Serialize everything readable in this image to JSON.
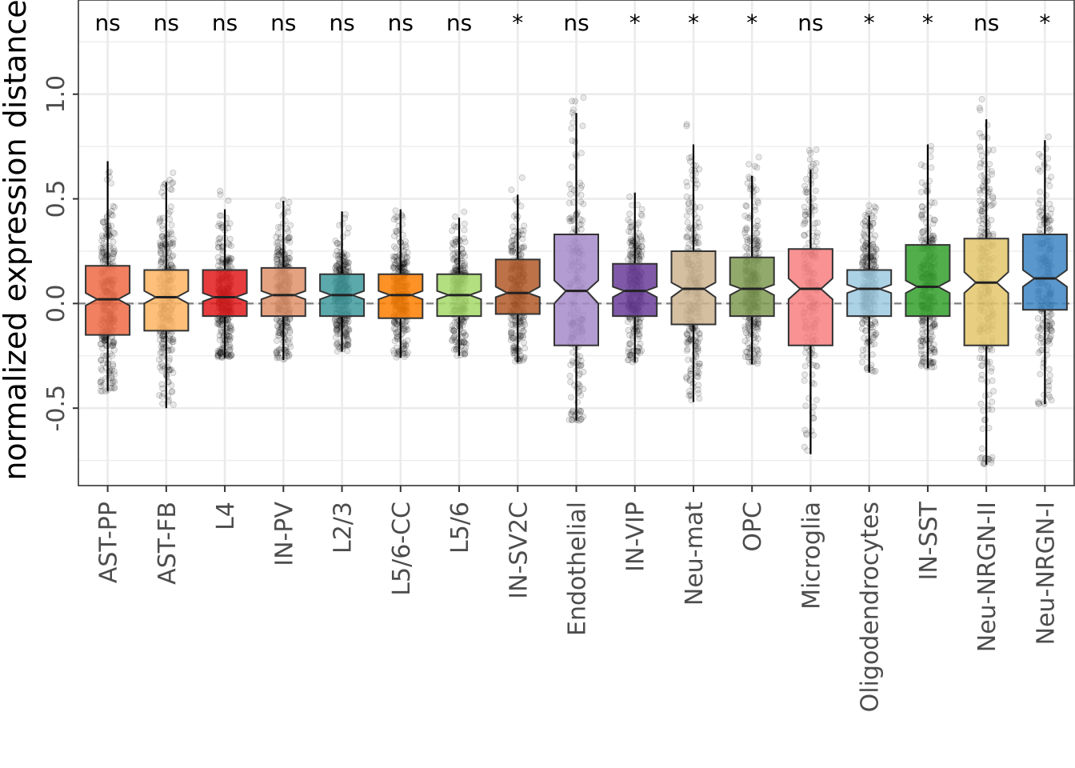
{
  "chart_data": {
    "type": "boxplot",
    "title": "",
    "xlabel": "",
    "ylabel": "normalized expression distance",
    "ylim": [
      -0.87,
      1.45
    ],
    "yticks": [
      -0.5,
      0.0,
      0.5,
      1.0
    ],
    "ytick_labels": [
      "-0.5",
      "0.0",
      "0.5",
      "1.0"
    ],
    "reference_line": 0.0,
    "notched": true,
    "jitter_points": true,
    "categories": [
      "AST-PP",
      "AST-FB",
      "L4",
      "IN-PV",
      "L2/3",
      "L5/6-CC",
      "L5/6",
      "IN-SV2C",
      "Endothelial",
      "IN-VIP",
      "Neu-mat",
      "OPC",
      "Microglia",
      "Oligodendrocytes",
      "IN-SST",
      "Neu-NRGN-II",
      "Neu-NRGN-I"
    ],
    "significance": [
      "ns",
      "ns",
      "ns",
      "ns",
      "ns",
      "ns",
      "ns",
      "*",
      "ns",
      "*",
      "*",
      "*",
      "ns",
      "*",
      "*",
      "ns",
      "*"
    ],
    "colors": [
      "#EF6A45",
      "#FDB462",
      "#E31A1C",
      "#E0926A",
      "#3F9A9E",
      "#FF7F00",
      "#A6D96A",
      "#B15928",
      "#A58BC9",
      "#6A3D9A",
      "#CDB48F",
      "#7F9A52",
      "#F88080",
      "#9ECAE1",
      "#33A02C",
      "#E3C56A",
      "#3C85C3"
    ],
    "series": [
      {
        "name": "AST-PP",
        "q1": -0.15,
        "median": 0.02,
        "q3": 0.18,
        "whisker_low": -0.42,
        "whisker_high": 0.68,
        "notch_low": -0.01,
        "notch_high": 0.05,
        "n": 300
      },
      {
        "name": "AST-FB",
        "q1": -0.13,
        "median": 0.03,
        "q3": 0.16,
        "whisker_low": -0.5,
        "whisker_high": 0.58,
        "notch_low": 0.0,
        "notch_high": 0.06,
        "n": 280
      },
      {
        "name": "L4",
        "q1": -0.06,
        "median": 0.03,
        "q3": 0.16,
        "whisker_low": -0.26,
        "whisker_high": 0.45,
        "notch_low": 0.01,
        "notch_high": 0.05,
        "n": 320
      },
      {
        "name": "IN-PV",
        "q1": -0.06,
        "median": 0.04,
        "q3": 0.17,
        "whisker_low": -0.27,
        "whisker_high": 0.49,
        "notch_low": 0.02,
        "notch_high": 0.06,
        "n": 300
      },
      {
        "name": "L2/3",
        "q1": -0.06,
        "median": 0.04,
        "q3": 0.14,
        "whisker_low": -0.23,
        "whisker_high": 0.44,
        "notch_low": 0.02,
        "notch_high": 0.06,
        "n": 320
      },
      {
        "name": "L5/6-CC",
        "q1": -0.07,
        "median": 0.04,
        "q3": 0.14,
        "whisker_low": -0.26,
        "whisker_high": 0.45,
        "notch_low": 0.02,
        "notch_high": 0.06,
        "n": 300
      },
      {
        "name": "L5/6",
        "q1": -0.06,
        "median": 0.04,
        "q3": 0.14,
        "whisker_low": -0.25,
        "whisker_high": 0.41,
        "notch_low": 0.02,
        "notch_high": 0.06,
        "n": 280
      },
      {
        "name": "IN-SV2C",
        "q1": -0.05,
        "median": 0.05,
        "q3": 0.21,
        "whisker_low": -0.28,
        "whisker_high": 0.52,
        "notch_low": 0.03,
        "notch_high": 0.08,
        "n": 260
      },
      {
        "name": "Endothelial",
        "q1": -0.2,
        "median": 0.06,
        "q3": 0.33,
        "whisker_low": -0.56,
        "whisker_high": 0.91,
        "notch_low": 0.0,
        "notch_high": 0.11,
        "n": 200
      },
      {
        "name": "IN-VIP",
        "q1": -0.06,
        "median": 0.06,
        "q3": 0.19,
        "whisker_low": -0.28,
        "whisker_high": 0.53,
        "notch_low": 0.03,
        "notch_high": 0.08,
        "n": 280
      },
      {
        "name": "Neu-mat",
        "q1": -0.1,
        "median": 0.07,
        "q3": 0.25,
        "whisker_low": -0.47,
        "whisker_high": 0.76,
        "notch_low": 0.03,
        "notch_high": 0.1,
        "n": 260
      },
      {
        "name": "OPC",
        "q1": -0.06,
        "median": 0.07,
        "q3": 0.22,
        "whisker_low": -0.29,
        "whisker_high": 0.61,
        "notch_low": 0.04,
        "notch_high": 0.09,
        "n": 300
      },
      {
        "name": "Microglia",
        "q1": -0.2,
        "median": 0.07,
        "q3": 0.26,
        "whisker_low": -0.72,
        "whisker_high": 0.64,
        "notch_low": 0.02,
        "notch_high": 0.12,
        "n": 180
      },
      {
        "name": "Oligodendrocytes",
        "q1": -0.06,
        "median": 0.07,
        "q3": 0.16,
        "whisker_low": -0.33,
        "whisker_high": 0.42,
        "notch_low": 0.05,
        "notch_high": 0.09,
        "n": 300
      },
      {
        "name": "IN-SST",
        "q1": -0.06,
        "median": 0.08,
        "q3": 0.28,
        "whisker_low": -0.31,
        "whisker_high": 0.76,
        "notch_low": 0.05,
        "notch_high": 0.11,
        "n": 280
      },
      {
        "name": "Neu-NRGN-II",
        "q1": -0.2,
        "median": 0.1,
        "q3": 0.31,
        "whisker_low": -0.77,
        "whisker_high": 0.88,
        "notch_low": 0.05,
        "notch_high": 0.15,
        "n": 240
      },
      {
        "name": "Neu-NRGN-I",
        "q1": -0.03,
        "median": 0.12,
        "q3": 0.33,
        "whisker_low": -0.48,
        "whisker_high": 0.78,
        "notch_low": 0.08,
        "notch_high": 0.16,
        "n": 220
      }
    ]
  }
}
